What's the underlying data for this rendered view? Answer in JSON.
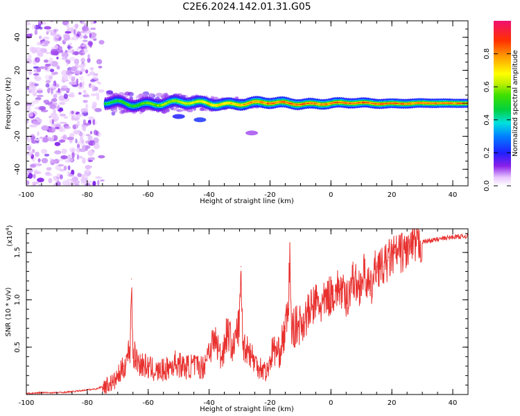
{
  "title": "C2E6.2024.142.01.31.G05",
  "chart_data": [
    {
      "type": "heatmap",
      "title": "C2E6.2024.142.01.31.G05",
      "xlabel": "Height of straight line (km)",
      "ylabel": "Frequency (Hz)",
      "xlim": [
        -100,
        45
      ],
      "ylim": [
        -50,
        50
      ],
      "x_ticks": [
        -100,
        -80,
        -60,
        -40,
        -20,
        0,
        20,
        40
      ],
      "x_tick_labels": [
        "-100",
        "-80",
        "-60",
        "-40",
        "-20",
        "0",
        "20",
        "40"
      ],
      "y_ticks": [
        -40,
        -20,
        0,
        20,
        40
      ],
      "y_tick_labels": [
        "-40",
        "-20",
        "0",
        "20",
        "40"
      ],
      "colorbar": {
        "label": "Normalized spectral amplitude",
        "range": [
          0,
          1
        ],
        "ticks": [
          0.0,
          0.2,
          0.4,
          0.6,
          0.8
        ],
        "tick_labels": [
          "0.0",
          "0.2",
          "0.4",
          "0.6",
          "0.8"
        ]
      },
      "features": [
        {
          "x_range": [
            -100,
            -74
          ],
          "freq_range": [
            -50,
            50
          ],
          "amplitude": 0.1,
          "desc": "noise"
        },
        {
          "x_range": [
            -74,
            45
          ],
          "freq_center": 0,
          "freq_width": 4,
          "amplitude_max": 1.0,
          "desc": "carrier"
        }
      ]
    },
    {
      "type": "line",
      "xlabel": "Height of straight line (km)",
      "ylabel": "SNR (10 * v/v)",
      "multiplier_label": "(x10^4)",
      "multiplier_base": "(x10",
      "multiplier_exp": "4",
      "xlim": [
        -100,
        45
      ],
      "ylim": [
        0,
        1.75
      ],
      "x_ticks": [
        -100,
        -80,
        -60,
        -40,
        -20,
        0,
        20,
        40
      ],
      "x_tick_labels": [
        "-100",
        "-80",
        "-60",
        "-40",
        "-20",
        "0",
        "20",
        "40"
      ],
      "y_ticks": [
        0.5,
        1.0,
        1.5
      ],
      "y_tick_labels": [
        "0.5",
        "1.0",
        "1.5"
      ],
      "series": [
        {
          "color": "#e8312f",
          "x": [
            -100,
            -95,
            -90,
            -85,
            -80,
            -77,
            -74,
            -71,
            -68,
            -66,
            -65.5,
            -65,
            -63,
            -60,
            -57,
            -54,
            -51,
            -48,
            -45,
            -42,
            -40,
            -38,
            -36,
            -34,
            -32,
            -30,
            -29.5,
            -29,
            -27,
            -25,
            -23,
            -21,
            -19,
            -17,
            -15,
            -14,
            -13.5,
            -13,
            -11,
            -9,
            -7,
            -5,
            -3,
            -1,
            1,
            3,
            5,
            7,
            9,
            11,
            13,
            15,
            17,
            19,
            21,
            23,
            25,
            27,
            29,
            31,
            33,
            35,
            37,
            39,
            41,
            43,
            45
          ],
          "y": [
            0.01,
            0.02,
            0.02,
            0.03,
            0.05,
            0.06,
            0.1,
            0.15,
            0.3,
            0.5,
            1.22,
            0.45,
            0.35,
            0.3,
            0.25,
            0.28,
            0.35,
            0.3,
            0.32,
            0.3,
            0.5,
            0.6,
            0.4,
            0.7,
            0.5,
            0.8,
            1.35,
            0.55,
            0.5,
            0.35,
            0.3,
            0.25,
            0.5,
            0.45,
            0.7,
            0.9,
            1.52,
            0.7,
            0.75,
            0.8,
            0.9,
            1.0,
            0.95,
            1.05,
            1.1,
            1.15,
            1.0,
            1.25,
            1.15,
            1.3,
            1.1,
            1.4,
            1.35,
            1.45,
            1.5,
            1.52,
            1.55,
            1.58,
            1.6,
            1.62,
            1.63,
            1.64,
            1.65,
            1.66,
            1.67,
            1.67,
            1.68
          ]
        }
      ]
    }
  ]
}
